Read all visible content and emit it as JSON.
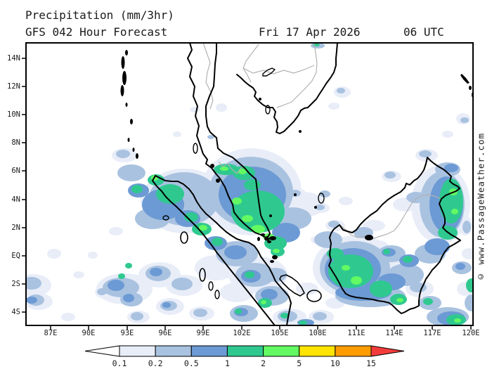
{
  "header": {
    "title": "Precipitation (mm/3hr)",
    "subtitle": "GFS 042 Hour Forecast",
    "valid_date": "Fri 17 Apr 2026",
    "valid_time": "06 UTC"
  },
  "watermark": "© www.PassageWeather.com",
  "axes": {
    "lat_labels": [
      "14N",
      "12N",
      "10N",
      "8N",
      "6N",
      "4N",
      "2N",
      "EQ",
      "2S",
      "4S"
    ],
    "lon_labels": [
      "87E",
      "90E",
      "93E",
      "96E",
      "99E",
      "102E",
      "105E",
      "108E",
      "111E",
      "114E",
      "117E",
      "120E"
    ]
  },
  "legend": {
    "labels": [
      "0.1",
      "0.2",
      "0.5",
      "1",
      "2",
      "5",
      "10",
      "15"
    ],
    "colors": {
      "below": "#ffffff",
      "levels": [
        "#e8edf8",
        "#a9c2e0",
        "#6c9ad4",
        "#2fc990",
        "#63f963",
        "#ffe400",
        "#ff9c00"
      ],
      "above": "#f23c3c"
    }
  },
  "map_colors": {
    "coastline": "#000000",
    "country_border": "#b2b2b2",
    "sea_land_background": "#ffffff"
  },
  "chart_data": {
    "type": "heatmap",
    "title": "Precipitation (mm/3hr)",
    "units": "mm/3hr",
    "model": "GFS",
    "forecast_hour": "042",
    "valid": "Fri 17 Apr 2026 06 UTC",
    "lon_range_deg_east": [
      85.1,
      120.2
    ],
    "lat_range_deg": [
      -5,
      15
    ],
    "thresholds_mm_per_3hr": [
      0.1,
      0.2,
      0.5,
      1,
      2,
      5,
      10,
      15
    ],
    "legend_has_below_arrow": true,
    "legend_has_above_arrow": true,
    "precip_cells_note": "ellipse blobs in map-area pixel coords [cx,cy,rx,ry,intensity_level 1..5]; level1=0.1-0.2, level2=0.2-0.5, level3=0.5-1, level4=1-2, level5=2-5 mm/3hr",
    "precip_cells": [
      [
        10,
        345,
        26,
        16,
        1
      ],
      [
        18,
        368,
        20,
        12,
        1
      ],
      [
        40,
        300,
        10,
        7,
        1
      ],
      [
        75,
        330,
        8,
        5,
        1
      ],
      [
        128,
        268,
        10,
        6,
        1
      ],
      [
        110,
        355,
        12,
        8,
        1
      ],
      [
        60,
        390,
        10,
        6,
        1
      ],
      [
        160,
        390,
        16,
        9,
        1
      ],
      [
        140,
        350,
        40,
        22,
        1
      ],
      [
        190,
        330,
        30,
        18,
        1
      ],
      [
        225,
        345,
        26,
        15,
        1
      ],
      [
        205,
        375,
        20,
        12,
        1
      ],
      [
        250,
        385,
        18,
        10,
        1
      ],
      [
        95,
        302,
        7,
        5,
        1
      ],
      [
        225,
        225,
        62,
        46,
        1
      ],
      [
        140,
        160,
        18,
        10,
        1
      ],
      [
        270,
        320,
        30,
        18,
        1
      ],
      [
        320,
        212,
        72,
        62,
        1
      ],
      [
        395,
        230,
        30,
        18,
        1
      ],
      [
        385,
        215,
        14,
        8,
        1
      ],
      [
        420,
        235,
        12,
        7,
        1
      ],
      [
        440,
        260,
        14,
        8,
        1
      ],
      [
        415,
        280,
        10,
        6,
        1
      ],
      [
        455,
        225,
        10,
        6,
        1
      ],
      [
        450,
        70,
        12,
        8,
        1
      ],
      [
        438,
        90,
        8,
        5,
        1
      ],
      [
        330,
        330,
        42,
        26,
        1
      ],
      [
        375,
        390,
        24,
        12,
        1
      ],
      [
        400,
        350,
        16,
        9,
        1
      ],
      [
        420,
        390,
        18,
        10,
        1
      ],
      [
        300,
        355,
        24,
        14,
        1
      ],
      [
        440,
        370,
        14,
        8,
        1
      ],
      [
        470,
        320,
        62,
        46,
        1
      ],
      [
        408,
        225,
        12,
        7,
        1
      ],
      [
        560,
        350,
        20,
        12,
        1
      ],
      [
        495,
        260,
        16,
        8,
        1
      ],
      [
        500,
        290,
        16,
        9,
        1
      ],
      [
        590,
        230,
        42,
        56,
        1
      ],
      [
        570,
        160,
        16,
        9,
        1
      ],
      [
        625,
        260,
        10,
        14,
        1
      ],
      [
        630,
        300,
        10,
        8,
        1
      ],
      [
        540,
        230,
        18,
        10,
        1
      ],
      [
        520,
        190,
        14,
        8,
        1
      ],
      [
        625,
        350,
        12,
        10,
        1
      ],
      [
        622,
        108,
        10,
        8,
        1
      ],
      [
        600,
        130,
        8,
        5,
        1
      ],
      [
        240,
        95,
        7,
        4,
        1
      ],
      [
        215,
        130,
        6,
        4,
        1
      ],
      [
        278,
        92,
        8,
        6,
        1
      ],
      [
        398,
        398,
        14,
        6,
        1
      ],
      [
        8,
        342,
        14,
        9,
        2
      ],
      [
        14,
        366,
        12,
        8,
        2
      ],
      [
        108,
        354,
        7,
        5,
        2
      ],
      [
        135,
        348,
        26,
        14,
        2
      ],
      [
        150,
        365,
        16,
        10,
        2
      ],
      [
        158,
        389,
        9,
        6,
        2
      ],
      [
        188,
        328,
        18,
        11,
        2
      ],
      [
        222,
        343,
        15,
        9,
        2
      ],
      [
        203,
        374,
        12,
        7,
        2
      ],
      [
        248,
        384,
        10,
        6,
        2
      ],
      [
        225,
        222,
        50,
        38,
        2
      ],
      [
        180,
        250,
        25,
        15,
        2
      ],
      [
        150,
        185,
        20,
        12,
        2
      ],
      [
        138,
        158,
        10,
        6,
        2
      ],
      [
        300,
        300,
        30,
        18,
        2
      ],
      [
        320,
        212,
        60,
        50,
        2
      ],
      [
        380,
        250,
        26,
        16,
        2
      ],
      [
        383,
        214,
        8,
        5,
        2
      ],
      [
        418,
        234,
        7,
        4,
        2
      ],
      [
        438,
        258,
        8,
        5,
        2
      ],
      [
        448,
        68,
        6,
        4,
        2
      ],
      [
        415,
        4,
        10,
        4,
        2
      ],
      [
        326,
        330,
        28,
        17,
        2
      ],
      [
        350,
        360,
        24,
        14,
        2
      ],
      [
        310,
        385,
        20,
        12,
        2
      ],
      [
        372,
        389,
        14,
        8,
        2
      ],
      [
        418,
        389,
        10,
        6,
        2
      ],
      [
        355,
        330,
        16,
        10,
        2
      ],
      [
        468,
        320,
        50,
        38,
        2
      ],
      [
        430,
        280,
        20,
        12,
        2
      ],
      [
        490,
        360,
        50,
        16,
        2
      ],
      [
        540,
        330,
        26,
        16,
        2
      ],
      [
        520,
        300,
        20,
        12,
        2
      ],
      [
        558,
        348,
        12,
        7,
        2
      ],
      [
        575,
        370,
        16,
        10,
        2
      ],
      [
        480,
        270,
        14,
        8,
        2
      ],
      [
        592,
        230,
        32,
        47,
        2
      ],
      [
        575,
        300,
        22,
        14,
        2
      ],
      [
        600,
        180,
        18,
        10,
        2
      ],
      [
        568,
        158,
        9,
        5,
        2
      ],
      [
        627,
        262,
        6,
        9,
        2
      ],
      [
        620,
        320,
        14,
        9,
        2
      ],
      [
        555,
        220,
        14,
        8,
        2
      ],
      [
        600,
        390,
        30,
        14,
        2
      ],
      [
        634,
        370,
        10,
        12,
        2
      ],
      [
        624,
        110,
        6,
        4,
        2
      ],
      [
        263,
        134,
        5,
        3,
        2
      ],
      [
        425,
        215,
        8,
        5,
        2
      ],
      [
        518,
        188,
        8,
        5,
        2
      ],
      [
        8,
        366,
        8,
        5,
        3
      ],
      [
        128,
        345,
        12,
        8,
        3
      ],
      [
        146,
        363,
        8,
        6,
        3
      ],
      [
        185,
        326,
        9,
        6,
        3
      ],
      [
        200,
        373,
        6,
        4,
        3
      ],
      [
        195,
        230,
        30,
        22,
        3
      ],
      [
        160,
        210,
        15,
        10,
        3
      ],
      [
        230,
        250,
        18,
        12,
        3
      ],
      [
        270,
        285,
        16,
        10,
        3
      ],
      [
        298,
        298,
        16,
        10,
        3
      ],
      [
        322,
        216,
        48,
        40,
        3
      ],
      [
        370,
        270,
        20,
        14,
        3
      ],
      [
        320,
        332,
        14,
        9,
        3
      ],
      [
        346,
        358,
        12,
        8,
        3
      ],
      [
        306,
        383,
        10,
        6,
        3
      ],
      [
        465,
        322,
        40,
        30,
        3
      ],
      [
        480,
        355,
        40,
        12,
        3
      ],
      [
        520,
        340,
        20,
        12,
        3
      ],
      [
        545,
        310,
        14,
        9,
        3
      ],
      [
        516,
        298,
        10,
        6,
        3
      ],
      [
        598,
        230,
        24,
        40,
        3
      ],
      [
        585,
        290,
        18,
        12,
        3
      ],
      [
        605,
        178,
        10,
        6,
        3
      ],
      [
        618,
        318,
        7,
        5,
        3
      ],
      [
        605,
        392,
        20,
        10,
        3
      ],
      [
        335,
        225,
        32,
        26,
        3
      ],
      [
        398,
        398,
        12,
        5,
        3
      ],
      [
        136,
        332,
        5,
        4,
        4
      ],
      [
        146,
        317,
        5,
        4,
        4
      ],
      [
        205,
        215,
        20,
        14,
        4
      ],
      [
        185,
        195,
        12,
        8,
        4
      ],
      [
        158,
        208,
        8,
        6,
        4
      ],
      [
        235,
        248,
        10,
        7,
        4
      ],
      [
        250,
        265,
        14,
        9,
        4
      ],
      [
        272,
        283,
        8,
        6,
        4
      ],
      [
        330,
        240,
        38,
        30,
        4
      ],
      [
        310,
        185,
        16,
        10,
        4
      ],
      [
        285,
        180,
        18,
        8,
        4
      ],
      [
        322,
        202,
        12,
        8,
        4
      ],
      [
        355,
        285,
        16,
        10,
        4
      ],
      [
        358,
        297,
        10,
        7,
        4
      ],
      [
        413,
        3,
        5,
        2,
        4
      ],
      [
        318,
        330,
        7,
        5,
        4
      ],
      [
        340,
        370,
        10,
        7,
        4
      ],
      [
        302,
        382,
        5,
        4,
        4
      ],
      [
        368,
        388,
        6,
        4,
        4
      ],
      [
        462,
        325,
        32,
        24,
        4
      ],
      [
        440,
        300,
        12,
        8,
        4
      ],
      [
        505,
        350,
        16,
        12,
        4
      ],
      [
        530,
        365,
        12,
        8,
        4
      ],
      [
        543,
        308,
        7,
        5,
        4
      ],
      [
        513,
        297,
        5,
        4,
        4
      ],
      [
        572,
        368,
        7,
        5,
        4
      ],
      [
        605,
        225,
        17,
        32,
        4
      ],
      [
        600,
        270,
        14,
        10,
        4
      ],
      [
        612,
        394,
        14,
        8,
        4
      ],
      [
        634,
        345,
        8,
        10,
        4
      ],
      [
        394,
        398,
        6,
        3,
        4
      ],
      [
        183,
        192,
        5,
        4,
        5
      ],
      [
        252,
        263,
        6,
        4,
        5
      ],
      [
        308,
        183,
        6,
        4,
        5
      ],
      [
        282,
        179,
        6,
        3,
        5
      ],
      [
        300,
        225,
        7,
        5,
        5
      ],
      [
        315,
        250,
        8,
        5,
        5
      ],
      [
        330,
        265,
        10,
        6,
        5
      ],
      [
        345,
        276,
        8,
        5,
        5
      ],
      [
        356,
        296,
        5,
        3,
        5
      ],
      [
        338,
        369,
        4,
        3,
        5
      ],
      [
        470,
        338,
        8,
        6,
        5
      ],
      [
        455,
        320,
        6,
        4,
        5
      ],
      [
        608,
        212,
        6,
        5,
        5
      ],
      [
        610,
        240,
        5,
        4,
        5
      ],
      [
        614,
        395,
        5,
        3,
        5
      ],
      [
        532,
        366,
        5,
        3,
        5
      ]
    ]
  }
}
